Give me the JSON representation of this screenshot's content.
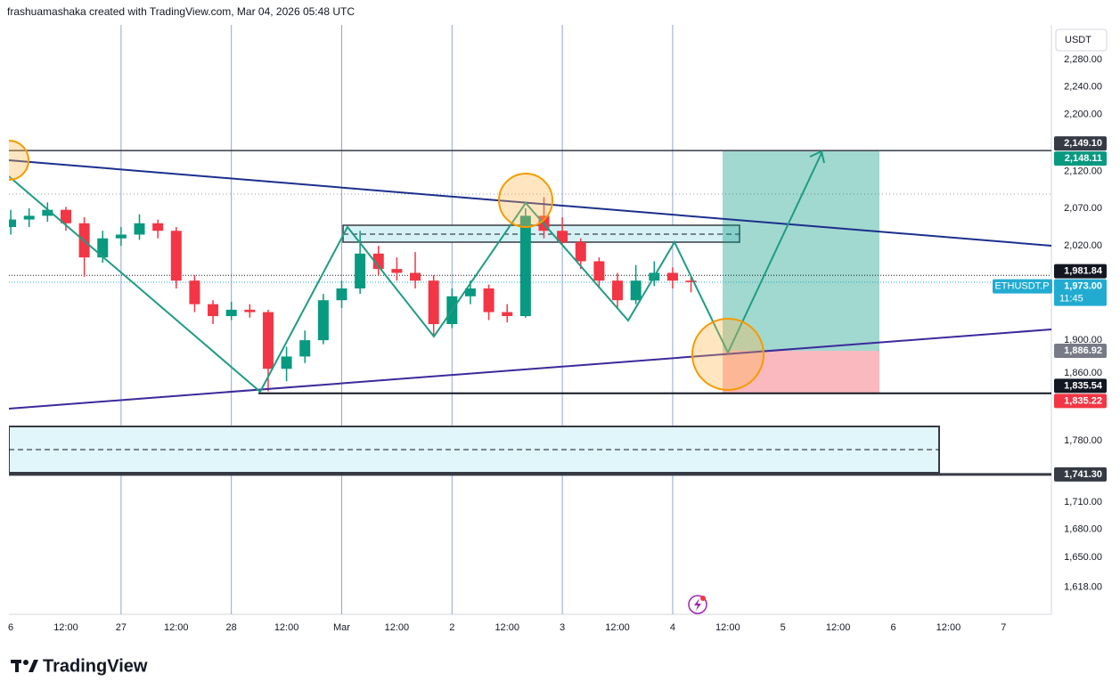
{
  "header": {
    "credit": "frashuamashaka created with TradingView.com, Mar 04, 2026 05:48 UTC"
  },
  "footer": {
    "brand": "TradingView"
  },
  "chart_data": {
    "type": "candlestick",
    "symbol": "ETHUSDT.P",
    "currency": "USDT",
    "log_scale": true,
    "ylim": [
      1590,
      2332
    ],
    "yticks": [
      {
        "value": 2280,
        "label": "2,280.00"
      },
      {
        "value": 2240,
        "label": "2,240.00"
      },
      {
        "value": 2200,
        "label": "2,200.00"
      },
      {
        "value": 2120,
        "label": "2,120.00"
      },
      {
        "value": 2070,
        "label": "2,070.00"
      },
      {
        "value": 2020,
        "label": "2,020.00"
      },
      {
        "value": 1900,
        "label": "1,900.00"
      },
      {
        "value": 1860,
        "label": "1,860.00"
      },
      {
        "value": 1780,
        "label": "1,780.00"
      },
      {
        "value": 1710,
        "label": "1,710.00"
      },
      {
        "value": 1680,
        "label": "1,680.00"
      },
      {
        "value": 1650,
        "label": "1,650.00"
      },
      {
        "value": 1618,
        "label": "1,618.00"
      }
    ],
    "xlim": [
      -0.4,
      226.4
    ],
    "xticks": [
      {
        "value": 0,
        "label": "6"
      },
      {
        "value": 12,
        "label": "12:00"
      },
      {
        "value": 24,
        "label": "27"
      },
      {
        "value": 36,
        "label": "12:00"
      },
      {
        "value": 48,
        "label": "28"
      },
      {
        "value": 60,
        "label": "12:00"
      },
      {
        "value": 72,
        "label": "Mar"
      },
      {
        "value": 84,
        "label": "12:00"
      },
      {
        "value": 96,
        "label": "2"
      },
      {
        "value": 108,
        "label": "12:00"
      },
      {
        "value": 120,
        "label": "3"
      },
      {
        "value": 132,
        "label": "12:00"
      },
      {
        "value": 144,
        "label": "4"
      },
      {
        "value": 156,
        "label": "12:00"
      },
      {
        "value": 168,
        "label": "5"
      },
      {
        "value": 180,
        "label": "12:00"
      },
      {
        "value": 192,
        "label": "6"
      },
      {
        "value": 204,
        "label": "12:00"
      },
      {
        "value": 216,
        "label": "7"
      }
    ],
    "up_color": "#089981",
    "down_color": "#f23645",
    "x": [
      0,
      4,
      8,
      12,
      16,
      20,
      24,
      28,
      32,
      36,
      40,
      44,
      48,
      52,
      56,
      60,
      64,
      68,
      72,
      76,
      80,
      84,
      88,
      92,
      96,
      100,
      104,
      108,
      112,
      116,
      120,
      124,
      128,
      132,
      136,
      140,
      144,
      148
    ],
    "open": [
      2045,
      2055,
      2060,
      2068,
      2050,
      2005,
      2030,
      2035,
      2050,
      2040,
      1975,
      1945,
      1930,
      1938,
      1935,
      1865,
      1880,
      1900,
      1950,
      1965,
      2010,
      1990,
      1985,
      1975,
      1920,
      1955,
      1965,
      1935,
      1930,
      2060,
      2040,
      2025,
      2000,
      1975,
      1950,
      1975,
      1985,
      1975
    ],
    "high": [
      2068,
      2070,
      2078,
      2072,
      2058,
      2040,
      2045,
      2062,
      2055,
      2045,
      1982,
      1950,
      1948,
      1945,
      1938,
      1892,
      1912,
      1958,
      1975,
      2040,
      2020,
      2005,
      2012,
      1982,
      1965,
      1975,
      1970,
      1945,
      2070,
      2085,
      2058,
      2030,
      2005,
      1985,
      1995,
      2000,
      1992,
      1980
    ],
    "low": [
      2035,
      2045,
      2052,
      2040,
      1980,
      1998,
      2020,
      2028,
      2030,
      1965,
      1935,
      1920,
      1925,
      1928,
      1838,
      1850,
      1872,
      1895,
      1940,
      1958,
      1982,
      1975,
      1965,
      1905,
      1915,
      1945,
      1925,
      1922,
      1928,
      2030,
      2022,
      1990,
      1965,
      1940,
      1945,
      1968,
      1965,
      1960
    ],
    "close": [
      2055,
      2060,
      2068,
      2050,
      2005,
      2030,
      2035,
      2050,
      2040,
      1975,
      1945,
      1930,
      1938,
      1935,
      1865,
      1880,
      1900,
      1950,
      1965,
      2010,
      1990,
      1985,
      1975,
      1920,
      1955,
      1965,
      1935,
      1930,
      2060,
      2040,
      2025,
      2000,
      1975,
      1950,
      1975,
      1985,
      1975,
      1973
    ],
    "price_tags": [
      {
        "value": 2149.1,
        "label": "2,149.10",
        "color": "#363a45"
      },
      {
        "value": 2148.11,
        "label": "2,148.11",
        "color": "#089981"
      },
      {
        "value": 1981.84,
        "label": "1,981.84",
        "color": "#131722"
      },
      {
        "value": 1973.0,
        "label": "1,973.00",
        "color": "#22abd1",
        "countdown": "11:45"
      },
      {
        "value": 1886.92,
        "label": "1,886.92",
        "color": "#787b86"
      },
      {
        "value": 1835.54,
        "label": "1,835.54",
        "color": "#131722"
      },
      {
        "value": 1835.22,
        "label": "1,835.22",
        "color": "#f23645"
      },
      {
        "value": 1741.3,
        "label": "1,741.30",
        "color": "#363a45"
      }
    ]
  }
}
